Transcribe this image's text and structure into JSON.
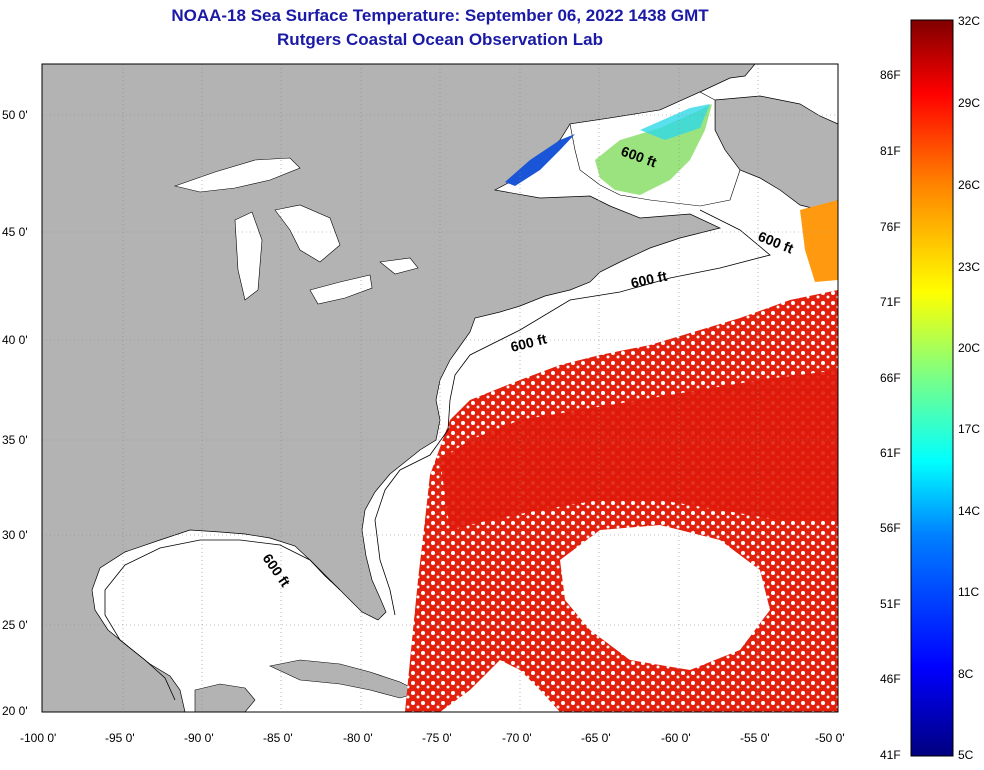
{
  "title": "NOAA-18 Sea Surface Temperature:  September 06, 2022 1438 GMT",
  "subtitle": "Rutgers Coastal Ocean Observation Lab",
  "colors": {
    "title": "#1a1aa6",
    "land": "#b3b3b3",
    "cloud": "#ffffff"
  },
  "map": {
    "lon_range": [
      -100,
      -50
    ],
    "lat_range": [
      20,
      52
    ],
    "lat_ticks": [
      {
        "value": 50,
        "label": "50 0'"
      },
      {
        "value": 45,
        "label": "45 0'"
      },
      {
        "value": 40,
        "label": "40 0'"
      },
      {
        "value": 35,
        "label": "35 0'"
      },
      {
        "value": 30,
        "label": "30 0'"
      },
      {
        "value": 25,
        "label": "25 0'"
      },
      {
        "value": 20,
        "label": "20 0'"
      }
    ],
    "lon_ticks": [
      {
        "value": -100,
        "label": "-100 0'"
      },
      {
        "value": -95,
        "label": "-95 0'"
      },
      {
        "value": -90,
        "label": "-90 0'"
      },
      {
        "value": -85,
        "label": "-85 0'"
      },
      {
        "value": -80,
        "label": "-80 0'"
      },
      {
        "value": -75,
        "label": "-75 0'"
      },
      {
        "value": -70,
        "label": "-70 0'"
      },
      {
        "value": -65,
        "label": "-65 0'"
      },
      {
        "value": -60,
        "label": "-60 0'"
      },
      {
        "value": -55,
        "label": "-55 0'"
      },
      {
        "value": -50,
        "label": "-50 0'"
      }
    ],
    "isobath_labels": [
      "600 ft",
      "600 ft",
      "600 ft",
      "600 ft",
      "600 ft"
    ]
  },
  "colorbar": {
    "celsius": [
      "32C",
      "29C",
      "26C",
      "23C",
      "20C",
      "17C",
      "14C",
      "11C",
      "8C",
      "5C"
    ],
    "fahrenheit": [
      "86F",
      "81F",
      "76F",
      "71F",
      "66F",
      "61F",
      "56F",
      "51F",
      "46F",
      "41F"
    ],
    "gradient": [
      "#00007f",
      "#0000ff",
      "#0080ff",
      "#00ffff",
      "#80ff80",
      "#ffff00",
      "#ff8000",
      "#ff0000",
      "#7f0000"
    ]
  }
}
